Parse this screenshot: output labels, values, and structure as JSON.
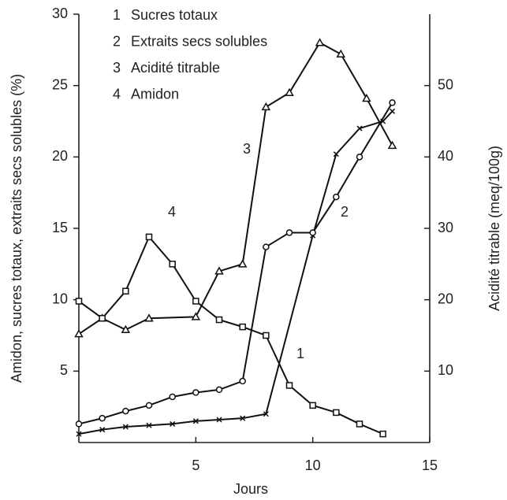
{
  "chart_data": {
    "type": "line",
    "xlabel": "Jours",
    "ylabel": "Amidon, sucres totaux, extraits secs solubles (%)",
    "y2label": "Acidité titrable (meq/100g)",
    "xlim": [
      0,
      15
    ],
    "xticks": [
      5,
      10,
      15
    ],
    "ylim": [
      0,
      30
    ],
    "yticks": [
      5,
      10,
      15,
      20,
      25,
      30
    ],
    "y2lim": [
      0,
      60
    ],
    "y2ticks": [
      10,
      20,
      30,
      40,
      50
    ],
    "series": [
      {
        "label": "1",
        "name": "Sucres totaux",
        "color": "#111111",
        "marker": "x",
        "x": [
          0,
          1,
          2,
          3,
          4,
          5,
          6,
          7,
          8,
          10,
          11,
          12,
          13,
          13.4
        ],
        "values": [
          0.6,
          0.9,
          1.1,
          1.2,
          1.3,
          1.5,
          1.6,
          1.7,
          2.0,
          14.5,
          20.2,
          22,
          22.5,
          23.2
        ]
      },
      {
        "label": "2",
        "name": "Extraits secs solubles",
        "color": "#111111",
        "marker": "circle",
        "x": [
          0,
          1,
          2,
          3,
          4,
          5,
          6,
          7,
          8,
          9,
          10,
          11,
          12,
          13.4
        ],
        "values": [
          1.3,
          1.7,
          2.2,
          2.6,
          3.2,
          3.5,
          3.7,
          4.3,
          13.7,
          14.7,
          14.7,
          17.2,
          20,
          23.8
        ]
      },
      {
        "label": "3",
        "name": "Acidité titrable",
        "color": "#111111",
        "marker": "triangle",
        "axis": "y2",
        "x": [
          0,
          1,
          2,
          3,
          5,
          6,
          7,
          8,
          9,
          10.3,
          11.2,
          12.3,
          13.4
        ],
        "values": [
          15.2,
          17.4,
          15.8,
          17.4,
          17.6,
          24,
          25,
          47,
          49,
          56,
          54.4,
          48.2,
          41.6
        ]
      },
      {
        "label": "4",
        "name": "Amidon",
        "color": "#111111",
        "marker": "square",
        "x": [
          0,
          1,
          2,
          3,
          4,
          5,
          6,
          7,
          8,
          9,
          10,
          11,
          12,
          13
        ],
        "values": [
          9.9,
          8.7,
          10.6,
          14.4,
          12.5,
          9.9,
          8.6,
          8.1,
          7.5,
          4.0,
          2.6,
          2.1,
          1.3,
          0.6
        ]
      }
    ]
  }
}
